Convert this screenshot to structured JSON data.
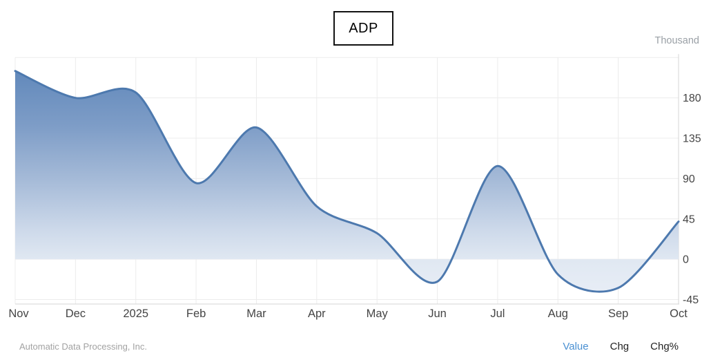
{
  "header": {
    "ticker_label": "ADP",
    "unit_label": "Thousand"
  },
  "footer": {
    "source": "Automatic Data Processing, Inc.",
    "tabs": [
      {
        "label": "Value",
        "active": true
      },
      {
        "label": "Chg",
        "active": false
      },
      {
        "label": "Chg%",
        "active": false
      }
    ]
  },
  "colors": {
    "line": "#4d79ae",
    "gridline": "#ececec",
    "axis_line": "#d5d5d5",
    "axis_text": "#444444",
    "muted_text": "#9aa0a6",
    "active_link": "#4a90d2"
  },
  "chart_data": {
    "type": "area",
    "title": "ADP",
    "unit_label": "Thousand",
    "x_labels": [
      "Nov",
      "Dec",
      "2025",
      "Feb",
      "Mar",
      "Apr",
      "May",
      "Jun",
      "Jul",
      "Aug",
      "Sep",
      "Oct"
    ],
    "values": [
      210,
      180,
      186,
      85,
      147,
      59,
      29,
      -25,
      104,
      -17,
      -32,
      42
    ],
    "y_ticks": [
      180,
      135,
      90,
      45,
      0,
      -45
    ],
    "ylim": [
      -50,
      225
    ],
    "baseline": 0,
    "grid": true,
    "legend": "none",
    "smooth": true,
    "line_color": "#4d79ae",
    "fill_gradient_stops": [
      {
        "offset": 0.0,
        "color": "#5b84b8"
      },
      {
        "offset": 0.28,
        "color": "#7e9dc7"
      },
      {
        "offset": 0.5,
        "color": "#a6bbd8"
      },
      {
        "offset": 0.7,
        "color": "#cdd9ea"
      },
      {
        "offset": 0.82,
        "color": "#e0e8f2"
      },
      {
        "offset": 1.0,
        "color": "#eaeff7"
      }
    ]
  }
}
